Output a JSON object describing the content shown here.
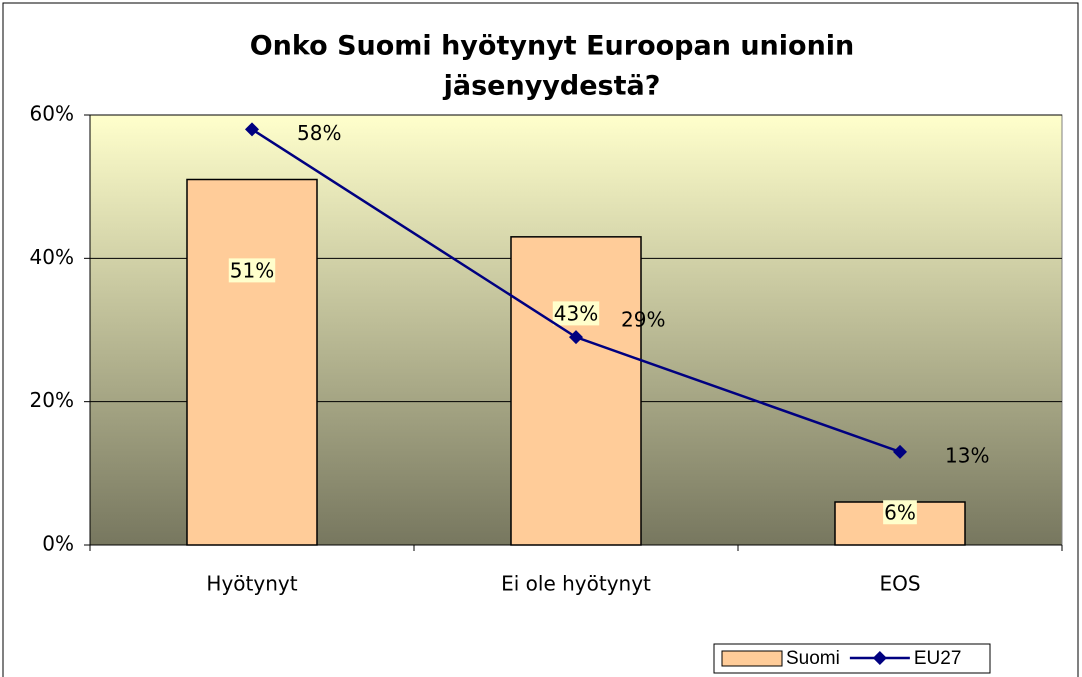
{
  "chart_data": {
    "type": "combo",
    "title": [
      "Onko Suomi hyötynyt Euroopan unionin",
      "jäsenyydestä?"
    ],
    "categories": [
      "Hyötynyt",
      "Ei ole hyötynyt",
      "EOS"
    ],
    "series": [
      {
        "name": "Suomi",
        "type": "bar",
        "color": "#ffcc99",
        "values": [
          51,
          43,
          6
        ],
        "value_labels": [
          "51%",
          "43%",
          "6%"
        ]
      },
      {
        "name": "EU27",
        "type": "line",
        "color": "#000080",
        "values": [
          58,
          29,
          13
        ],
        "value_labels": [
          "58%",
          "29%",
          "13%"
        ]
      }
    ],
    "ylim": [
      0,
      60
    ],
    "yticks": [
      {
        "value": 0,
        "label": "0%"
      },
      {
        "value": 20,
        "label": "20%"
      },
      {
        "value": 40,
        "label": "40%"
      },
      {
        "value": 60,
        "label": "60%"
      }
    ],
    "grid": true,
    "legend": "bottom-right"
  }
}
